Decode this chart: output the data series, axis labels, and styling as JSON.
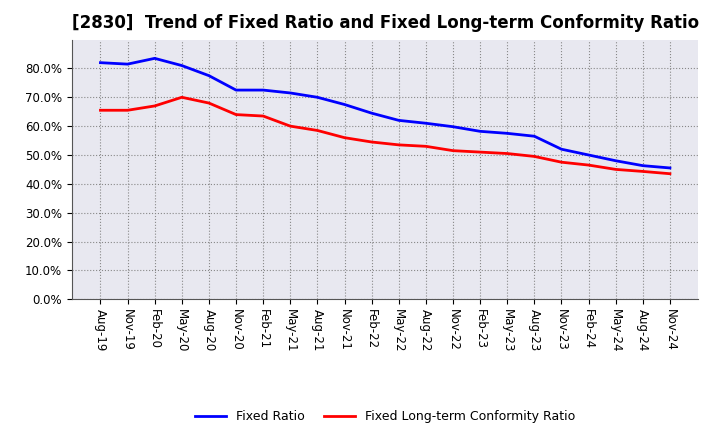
{
  "title": "[2830]  Trend of Fixed Ratio and Fixed Long-term Conformity Ratio",
  "x_labels": [
    "Aug-19",
    "Nov-19",
    "Feb-20",
    "May-20",
    "Aug-20",
    "Nov-20",
    "Feb-21",
    "May-21",
    "Aug-21",
    "Nov-21",
    "Feb-22",
    "May-22",
    "Aug-22",
    "Nov-22",
    "Feb-23",
    "May-23",
    "Aug-23",
    "Nov-23",
    "Feb-24",
    "May-24",
    "Aug-24",
    "Nov-24"
  ],
  "fixed_ratio": [
    0.82,
    0.815,
    0.835,
    0.81,
    0.775,
    0.725,
    0.725,
    0.715,
    0.7,
    0.675,
    0.645,
    0.62,
    0.61,
    0.598,
    0.582,
    0.575,
    0.565,
    0.52,
    0.5,
    0.48,
    0.463,
    0.455
  ],
  "fixed_lt_ratio": [
    0.655,
    0.655,
    0.67,
    0.7,
    0.68,
    0.64,
    0.635,
    0.6,
    0.585,
    0.56,
    0.545,
    0.535,
    0.53,
    0.515,
    0.51,
    0.505,
    0.495,
    0.475,
    0.465,
    0.45,
    0.443,
    0.435
  ],
  "fixed_ratio_color": "#0000FF",
  "fixed_lt_ratio_color": "#FF0000",
  "ylim": [
    0.0,
    0.9
  ],
  "yticks": [
    0.0,
    0.1,
    0.2,
    0.3,
    0.4,
    0.5,
    0.6,
    0.7,
    0.8
  ],
  "background_color": "#FFFFFF",
  "plot_bg_color": "#E8E8F0",
  "grid_color": "#888888",
  "line_width": 2.0,
  "title_fontsize": 12,
  "legend_label_fixed": "Fixed Ratio",
  "legend_label_lt": "Fixed Long-term Conformity Ratio"
}
